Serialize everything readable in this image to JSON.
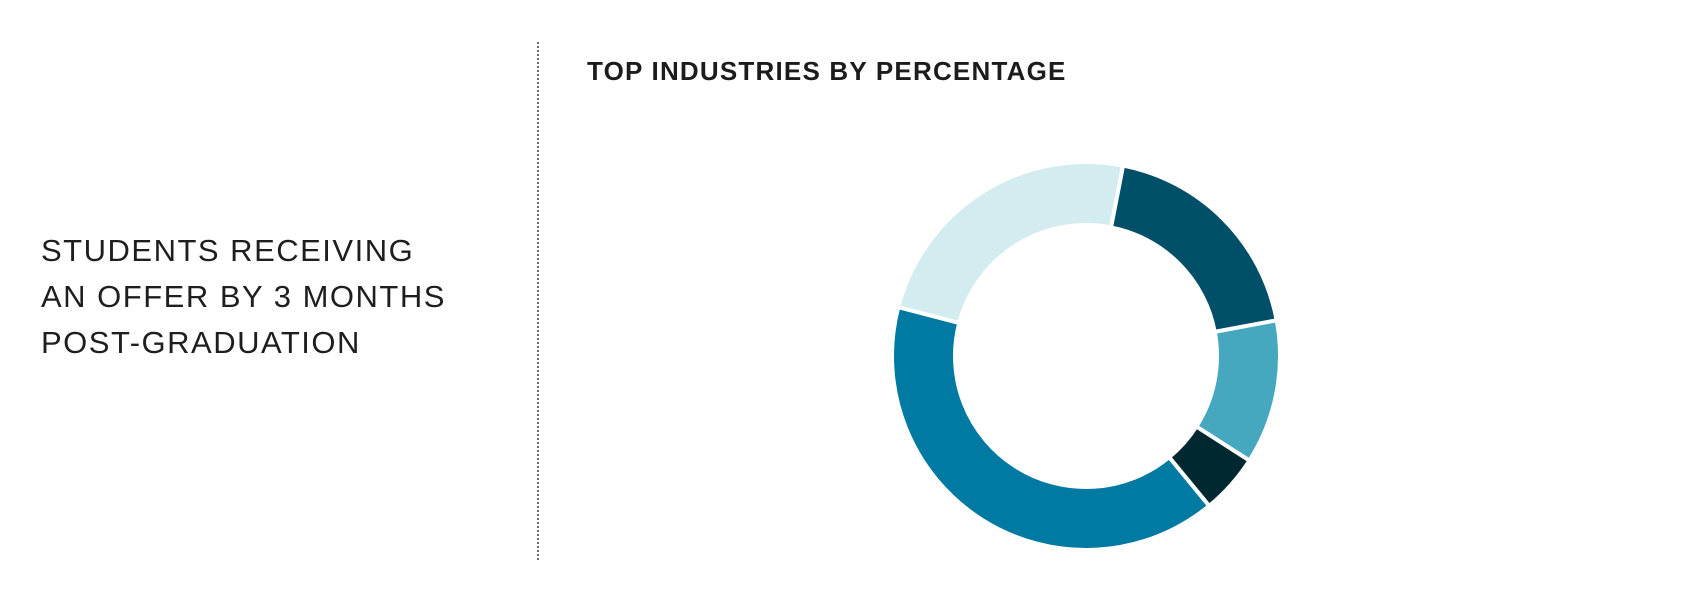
{
  "left": {
    "lines": [
      "STUDENTS RECEIVING",
      "AN OFFER BY 3 MONTHS",
      "POST-GRADUATION"
    ]
  },
  "chart_data": {
    "type": "pie",
    "title": "TOP INDUSTRIES BY PERCENTAGE",
    "donut": true,
    "legend": "none",
    "slices": [
      {
        "value": 19,
        "color": "#004f68"
      },
      {
        "value": 12,
        "color": "#45a8be"
      },
      {
        "value": 5,
        "color": "#002830"
      },
      {
        "value": 40,
        "color": "#007aa3"
      },
      {
        "value": 24,
        "color": "#d3ecef"
      }
    ]
  }
}
